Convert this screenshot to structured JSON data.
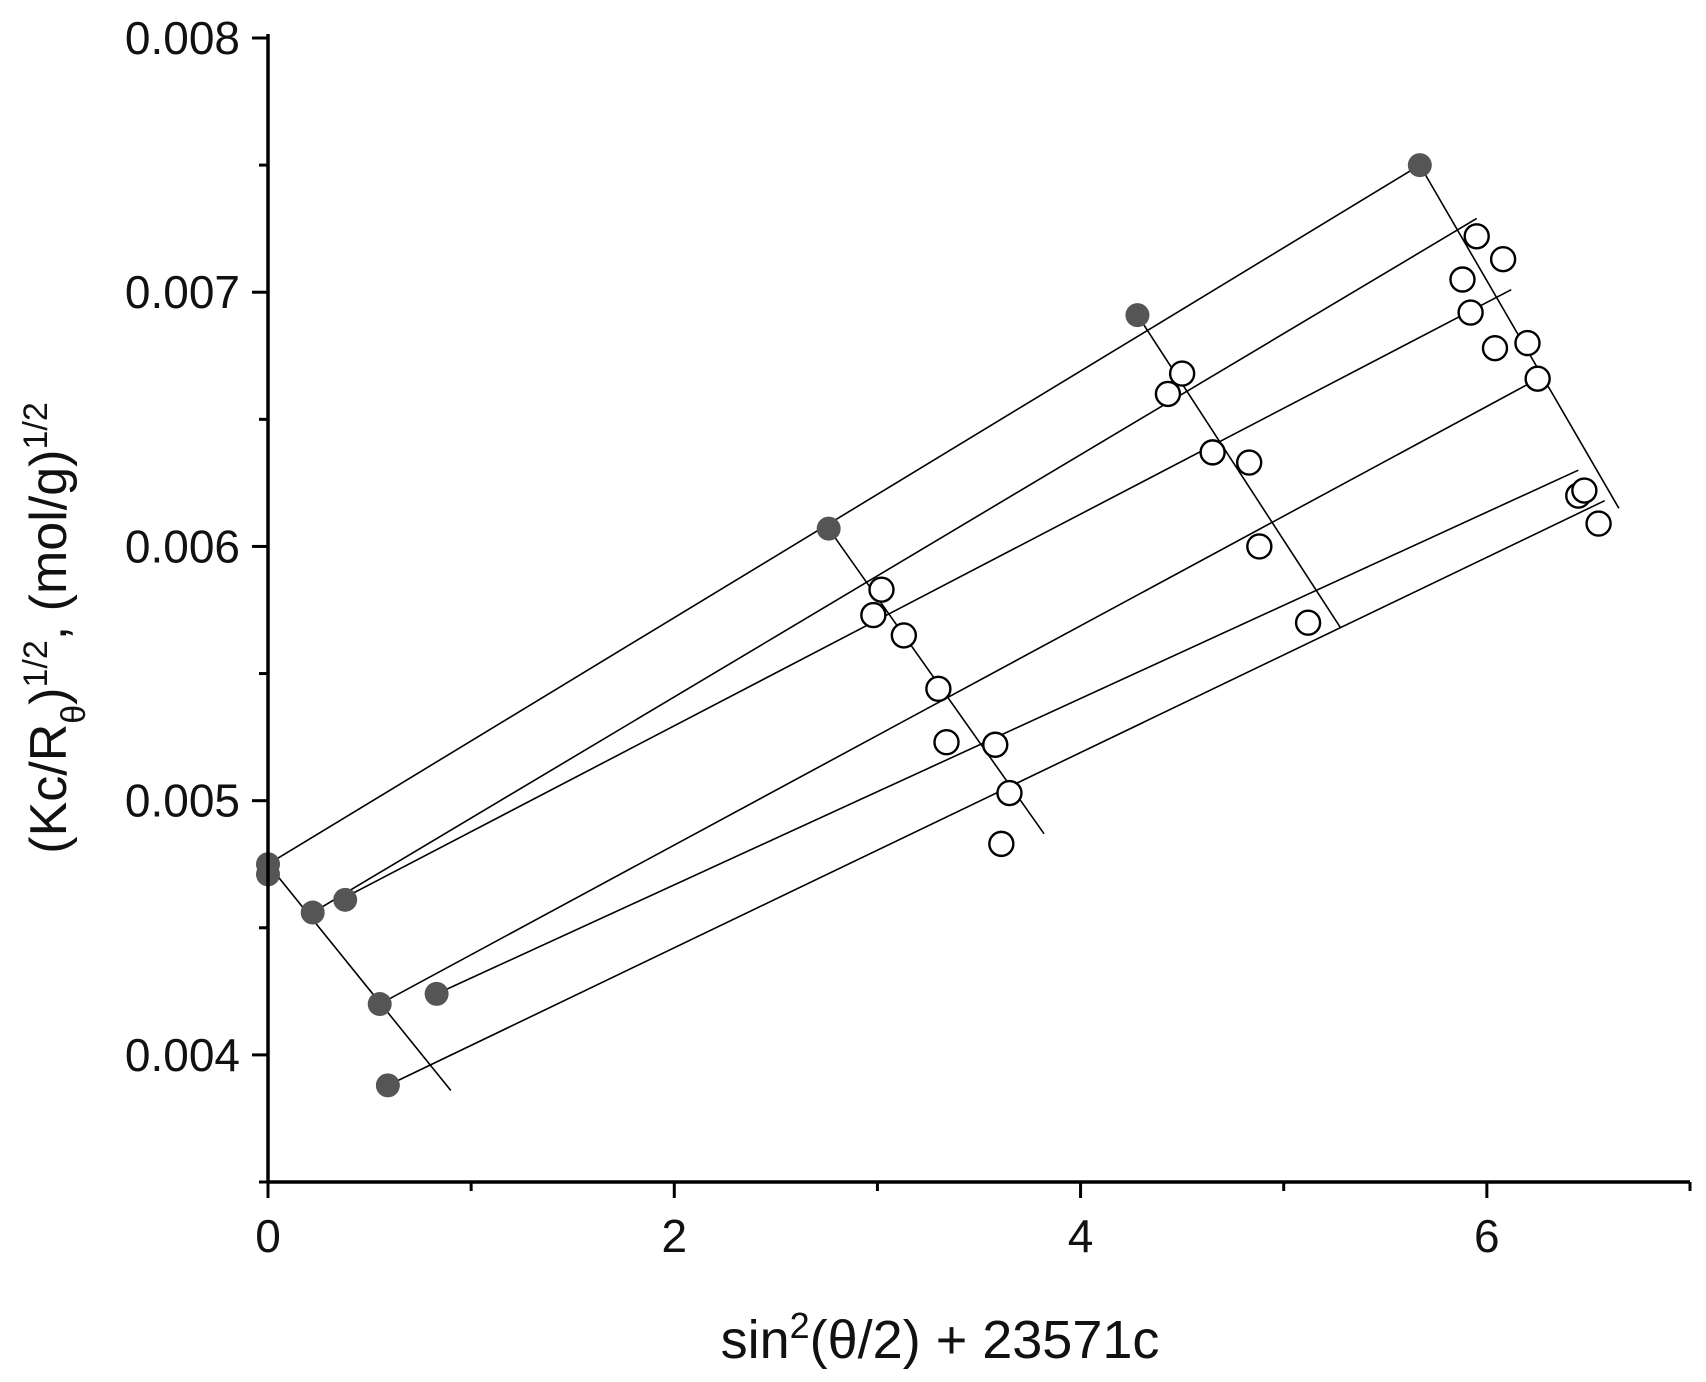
{
  "chart_data": {
    "type": "scatter",
    "title": "",
    "xlabel": {
      "main": "sin",
      "sup": "2",
      "rest": "(θ/2) + 23571c"
    },
    "ylabel": {
      "p1": "(Kc/R",
      "sub": "θ",
      "p2": ")",
      "sup1": "1/2",
      "p3": ", (mol/g)",
      "sup2": "1/2"
    },
    "xlim": [
      0,
      7
    ],
    "ylim": [
      0.0035,
      0.008
    ],
    "x_ticks": [
      0,
      2,
      4,
      6
    ],
    "x_tick_labels": [
      "0",
      "2",
      "4",
      "6"
    ],
    "x_minor_ticks": [
      1,
      3,
      5,
      7
    ],
    "y_ticks": [
      0.004,
      0.005,
      0.006,
      0.007,
      0.008
    ],
    "y_tick_labels": [
      "0.004",
      "0.005",
      "0.006",
      "0.007",
      "0.008"
    ],
    "y_minor_ticks": [
      0.0035,
      0.0045,
      0.0055,
      0.0065,
      0.0075
    ],
    "grid": false,
    "legend": "none",
    "colors": {
      "filled_marker": "#555555",
      "open_marker_edge": "#000000",
      "line": "#000000",
      "axis": "#000000"
    },
    "series": [
      {
        "marker": "filled",
        "points": [
          [
            0.0,
            0.00475
          ],
          [
            0.0,
            0.00471
          ],
          [
            0.22,
            0.00456
          ],
          [
            0.38,
            0.00461
          ],
          [
            0.55,
            0.0042
          ],
          [
            0.83,
            0.00424
          ],
          [
            0.59,
            0.00388
          ],
          [
            2.76,
            0.00607
          ],
          [
            4.28,
            0.00691
          ],
          [
            5.67,
            0.0075
          ]
        ]
      },
      {
        "marker": "open",
        "points": [
          [
            2.98,
            0.00573
          ],
          [
            3.02,
            0.00583
          ],
          [
            3.13,
            0.00565
          ],
          [
            3.3,
            0.00544
          ],
          [
            3.34,
            0.00523
          ],
          [
            3.58,
            0.00522
          ],
          [
            3.65,
            0.00503
          ],
          [
            3.61,
            0.00483
          ],
          [
            4.43,
            0.0066
          ],
          [
            4.5,
            0.00668
          ],
          [
            4.65,
            0.00637
          ],
          [
            4.83,
            0.00633
          ],
          [
            4.88,
            0.006
          ],
          [
            5.12,
            0.0057
          ],
          [
            5.88,
            0.00705
          ],
          [
            5.95,
            0.00722
          ],
          [
            5.92,
            0.00692
          ],
          [
            6.08,
            0.00713
          ],
          [
            6.04,
            0.00678
          ],
          [
            6.2,
            0.0068
          ],
          [
            6.25,
            0.00666
          ],
          [
            6.45,
            0.0062
          ],
          [
            6.48,
            0.00622
          ],
          [
            6.55,
            0.00609
          ]
        ]
      }
    ],
    "fit_lines": [
      [
        [
          0.0,
          0.00475
        ],
        [
          5.67,
          0.0075
        ]
      ],
      [
        [
          0.22,
          0.00456
        ],
        [
          5.95,
          0.00729
        ]
      ],
      [
        [
          0.38,
          0.00462
        ],
        [
          6.12,
          0.00701
        ]
      ],
      [
        [
          0.55,
          0.0042
        ],
        [
          6.23,
          0.00665
        ]
      ],
      [
        [
          0.83,
          0.00424
        ],
        [
          6.45,
          0.0063
        ]
      ],
      [
        [
          0.59,
          0.00388
        ],
        [
          6.58,
          0.00618
        ]
      ],
      [
        [
          0.0,
          0.00475
        ],
        [
          0.9,
          0.00386
        ]
      ],
      [
        [
          2.76,
          0.00607
        ],
        [
          3.82,
          0.00487
        ]
      ],
      [
        [
          4.28,
          0.00691
        ],
        [
          5.28,
          0.00568
        ]
      ],
      [
        [
          5.67,
          0.0075
        ],
        [
          6.65,
          0.00615
        ]
      ]
    ]
  }
}
